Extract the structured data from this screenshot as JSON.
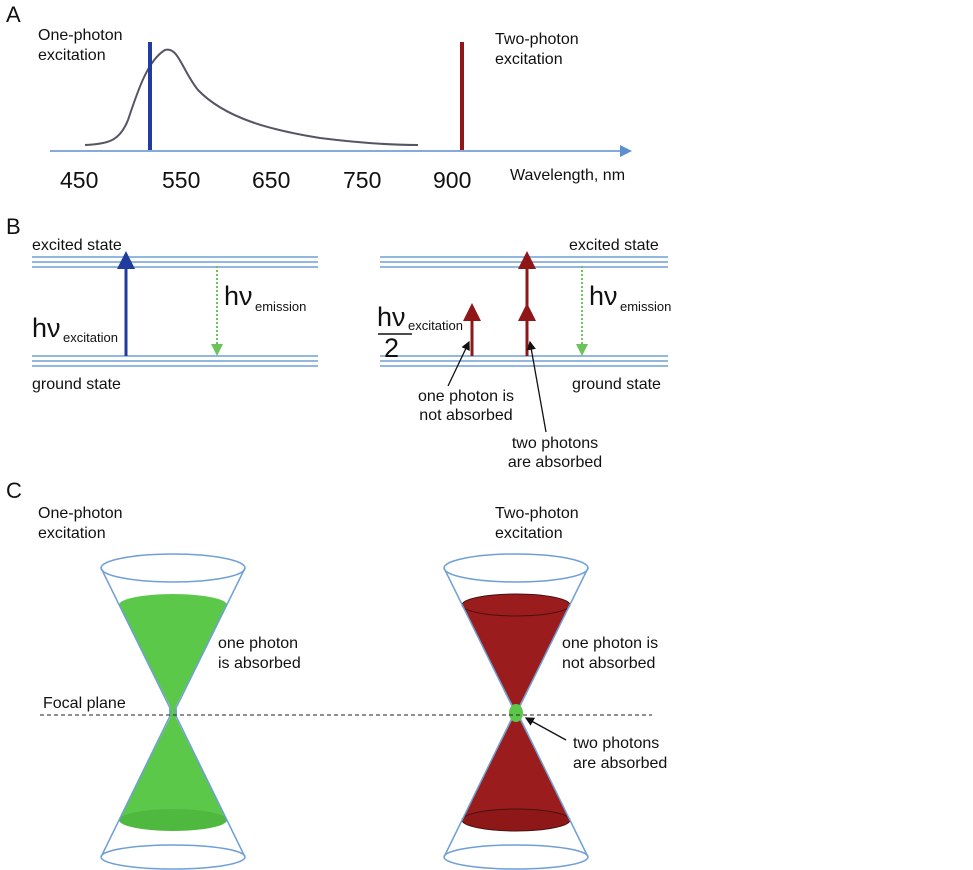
{
  "panels": [
    {
      "label": "A",
      "left_label": [
        "One-photon",
        "excitation"
      ],
      "right_label": [
        "Two-photon",
        "excitation"
      ],
      "axis_labels": [
        "450",
        "550",
        "650",
        "750",
        "900"
      ],
      "axis_title": "Wavelength, nm"
    },
    {
      "label": "B",
      "left": {
        "top_level": "excited state",
        "bottom_level": "ground state",
        "excitation_symbol": "hν",
        "excitation_sub": "excitation",
        "emission_symbol": "hν",
        "emission_sub": "emission"
      },
      "right": {
        "top_level": "excited state",
        "bottom_level": "ground state",
        "fraction_symbol": "hν",
        "fraction_sub": "excitation",
        "fraction_denominator": "2",
        "emission_symbol": "hν",
        "emission_sub": "emission",
        "not_absorbed": [
          "one photon is",
          "not absorbed"
        ],
        "absorbed": [
          "two photons",
          "are absorbed"
        ]
      }
    },
    {
      "label": "C",
      "left_label": [
        "One-photon",
        "excitation"
      ],
      "right_label": [
        "Two-photon",
        "excitation"
      ],
      "left_note": [
        "one photon",
        "is absorbed"
      ],
      "focal_plane": "Focal plane",
      "right_note": [
        "one photon is",
        "not absorbed"
      ],
      "right_point_note": [
        "two photons",
        "are absorbed"
      ]
    }
  ]
}
